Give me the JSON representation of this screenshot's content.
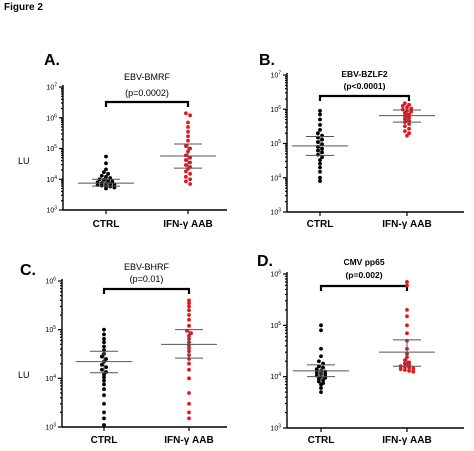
{
  "figure_title": "Figure 2",
  "colors": {
    "ctrl": "#000000",
    "aab": "#e8141c"
  },
  "chart_data": [
    {
      "type": "scatter",
      "panel_label": "A.",
      "title": "EBV-BMRF",
      "pvalue": "(p=0.0002)",
      "title_bold": false,
      "ylabel": "LU",
      "yscale": "log",
      "ylim_exp": [
        3,
        7
      ],
      "categories": [
        "CTRL",
        "IFN-γ AAB"
      ],
      "series": [
        {
          "values": [
            55000,
            33000,
            21000,
            17000,
            15000,
            13000,
            12000,
            11000,
            10000,
            9500,
            9000,
            8500,
            8000,
            7500,
            7200,
            7000,
            6800,
            6500,
            6200,
            6000,
            5800,
            5400,
            5000
          ],
          "mean": 7500,
          "ci": [
            6000,
            10000
          ]
        },
        {
          "values": [
            1400000,
            1200000,
            700000,
            500000,
            350000,
            250000,
            180000,
            120000,
            100000,
            80000,
            60000,
            50000,
            42000,
            35000,
            29000,
            25000,
            22000,
            18000,
            15000,
            12000,
            10000,
            8500,
            7000
          ],
          "mean": 57000,
          "ci": [
            23000,
            140000
          ]
        }
      ]
    },
    {
      "type": "scatter",
      "panel_label": "B.",
      "title": "EBV-BZLF2",
      "pvalue": "(p<0.0001)",
      "title_bold": true,
      "ylabel": "",
      "yscale": "log",
      "ylim_exp": [
        3,
        7
      ],
      "categories": [
        "CTRL",
        "IFN-γ AAB"
      ],
      "series": [
        {
          "values": [
            900000,
            700000,
            500000,
            350000,
            250000,
            200000,
            170000,
            150000,
            130000,
            110000,
            95000,
            80000,
            70000,
            62000,
            55000,
            47000,
            40000,
            33000,
            26000,
            20000,
            15000,
            10000,
            8000
          ],
          "mean": 85000,
          "ci": [
            45000,
            160000
          ]
        },
        {
          "values": [
            1500000,
            1350000,
            1250000,
            1150000,
            1050000,
            980000,
            900000,
            850000,
            780000,
            700000,
            640000,
            580000,
            520000,
            470000,
            420000,
            370000,
            320000,
            270000,
            230000,
            200000,
            170000
          ],
          "mean": 650000,
          "ci": [
            420000,
            950000
          ]
        }
      ]
    },
    {
      "type": "scatter",
      "panel_label": "C.",
      "title": "EBV-BHRF",
      "pvalue": "(p=0.01)",
      "title_bold": false,
      "ylabel": "LU",
      "yscale": "log",
      "ylim_exp": [
        3,
        6
      ],
      "categories": [
        "CTRL",
        "IFN-γ AAB"
      ],
      "series": [
        {
          "values": [
            100000,
            80000,
            65000,
            55000,
            45000,
            38000,
            32000,
            28000,
            25000,
            22000,
            19000,
            17000,
            15000,
            13500,
            12000,
            10500,
            9000,
            7500,
            6000,
            4500,
            3000,
            2000,
            1500,
            1100
          ],
          "mean": 22000,
          "ci": [
            13000,
            36000
          ]
        },
        {
          "values": [
            400000,
            350000,
            300000,
            250000,
            200000,
            160000,
            120000,
            95000,
            85000,
            75000,
            65000,
            55000,
            48000,
            42000,
            36000,
            30000,
            25000,
            20000,
            15000,
            10000,
            5000,
            3000,
            2000,
            1500
          ],
          "mean": 50000,
          "ci": [
            26000,
            100000
          ]
        }
      ]
    },
    {
      "type": "scatter",
      "panel_label": "D.",
      "title": "CMV pp65",
      "pvalue": "(p=0.002)",
      "title_bold": true,
      "ylabel": "",
      "yscale": "log",
      "ylim_exp": [
        3,
        6
      ],
      "categories": [
        "CTRL",
        "IFN-γ AAB"
      ],
      "series": [
        {
          "values": [
            100000,
            80000,
            35000,
            25000,
            20000,
            18000,
            16000,
            15000,
            14000,
            13000,
            12500,
            12000,
            11500,
            11000,
            10500,
            10000,
            9500,
            9000,
            8500,
            8000,
            7500,
            7000,
            6000,
            5000
          ],
          "mean": 13000,
          "ci": [
            10000,
            17000
          ]
        },
        {
          "values": [
            700000,
            600000,
            200000,
            150000,
            100000,
            70000,
            50000,
            35000,
            28000,
            24000,
            21000,
            19000,
            18000,
            17000,
            16000,
            15500,
            15000,
            14500,
            14000,
            13500,
            13000,
            12500
          ],
          "mean": 30000,
          "ci": [
            16000,
            52000
          ]
        }
      ]
    }
  ]
}
